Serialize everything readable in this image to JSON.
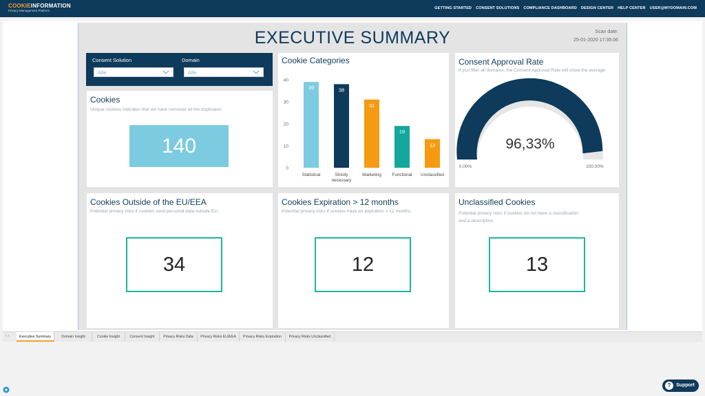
{
  "header": {
    "logo_part1": "COOKIE",
    "logo_part2": "INFORMATION",
    "logo_tagline": "Privacy Management Platform",
    "nav": [
      "GETTING STARTED",
      "CONSENT SOLUTIONS",
      "COMPLIANCE DASHBOARD",
      "DESIGN CENTER",
      "HELP CENTER",
      "USER@MYDOMAIN.COM"
    ]
  },
  "report": {
    "title": "EXECUTIVE SUMMARY",
    "scan_label": "Scan date:",
    "scan_date": "25-01-2020 17:35:06"
  },
  "filters": {
    "consent_label": "Consent Solution",
    "consent_value": "Alle",
    "domain_label": "Domain",
    "domain_value": "Alle"
  },
  "cookies": {
    "title": "Cookies",
    "subtitle": "Unique cookies indicates that we have removed all the duplicates.",
    "value": "140"
  },
  "categories": {
    "title": "Cookie Categories"
  },
  "chart_data": {
    "type": "bar",
    "categories": [
      "Statistical",
      "Strictly necessary",
      "Marketing",
      "Functional",
      "Unclassified"
    ],
    "category_lines": [
      [
        "Statistical"
      ],
      [
        "Strictly",
        "necessary"
      ],
      [
        "Marketing"
      ],
      [
        "Functional"
      ],
      [
        "Unclassified"
      ]
    ],
    "values": [
      39,
      38,
      31,
      19,
      13
    ],
    "colors": [
      "#7ccbe0",
      "#0e3a5b",
      "#f59a12",
      "#14a79c",
      "#f59a12"
    ],
    "yticks": [
      0,
      10,
      20,
      30,
      40
    ],
    "ylim": [
      0,
      40
    ],
    "grid": false,
    "data_labels": true
  },
  "approval": {
    "title": "Consent Approval Rate",
    "subtitle": "If you filter all domains, the Consent Approval Rate will show the average.",
    "value_text": "96,33%",
    "value": 0.9633,
    "min_label": "0,00%",
    "max_label": "100,00%",
    "fill_color": "#0e3a5b",
    "track_color": "#e6e6e6"
  },
  "outside_eu": {
    "title": "Cookies Outside of the EU/EEA",
    "subtitle": "Potential privacy risks if cookies send personal data outside EU.",
    "value": "34"
  },
  "expiration": {
    "title": "Cookies Expiration > 12 months",
    "subtitle": "Potential privacy risks if cookies have an expiration > 12 months.",
    "value": "12"
  },
  "unclassified": {
    "title": "Unclassified Cookies",
    "subtitle_line1": "Potential privacy risks if cookies do not have a classification",
    "subtitle_line2": "and a description.",
    "value": "13"
  },
  "tabs": [
    "Executive Summary",
    "Domain Insight",
    "Cookie Insight",
    "Consent Insight",
    "Privacy Risks Data",
    "Privacy Risks EU/EEA",
    "Privacy Risks Expiration",
    "Privacy Risks Unclassified"
  ],
  "support": {
    "label": "Support",
    "q": "?"
  }
}
